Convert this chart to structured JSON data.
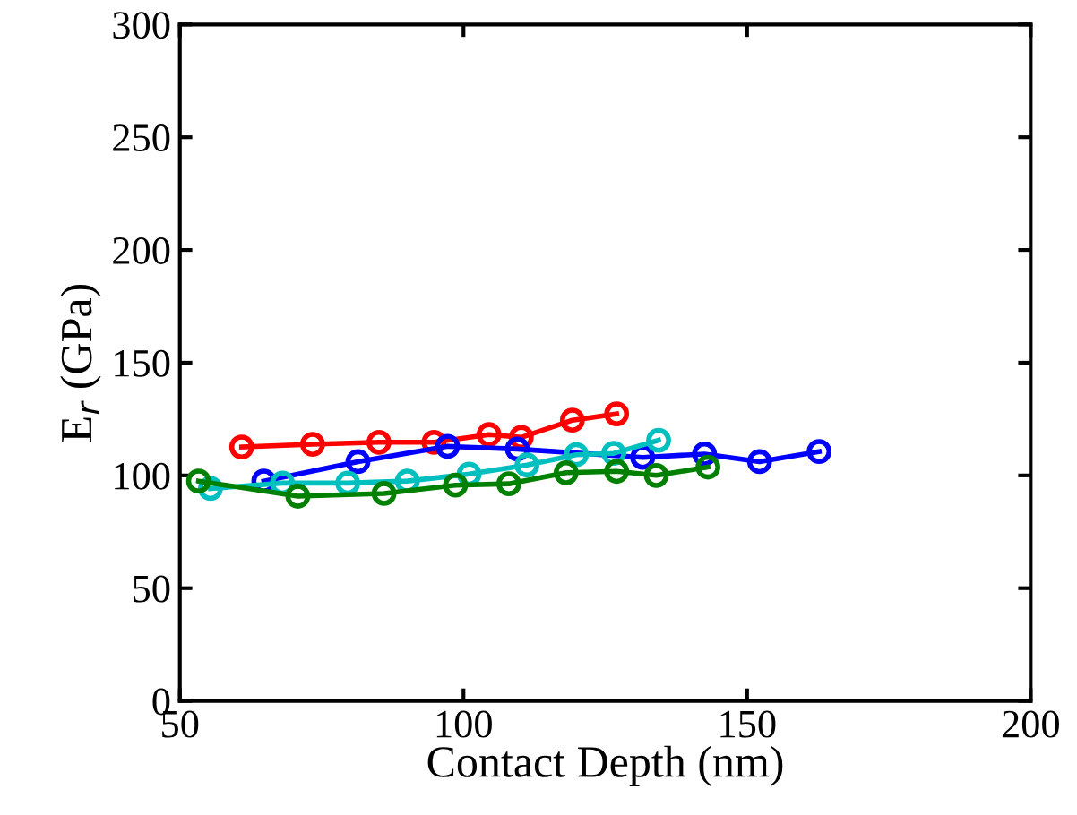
{
  "chart_data": {
    "type": "line",
    "xlabel": "Contact Depth (nm)",
    "ylabel": "E$_{r}$ (GPa)",
    "xlim": [
      50,
      200
    ],
    "ylim": [
      0,
      300
    ],
    "xticks": [
      50,
      100,
      150,
      200
    ],
    "yticks": [
      0,
      50,
      100,
      150,
      200,
      250,
      300
    ],
    "grid": false,
    "legend": false,
    "marker": "circle",
    "line_style": "solid",
    "series": [
      {
        "color": "#ff0000",
        "x": [
          60.9,
          73.4,
          85.1,
          94.8,
          104.5,
          110.2,
          119.2,
          127.0
        ],
        "values": [
          112.6,
          113.8,
          114.7,
          114.7,
          118.1,
          116.9,
          124.5,
          127.3
        ]
      },
      {
        "color": "#0000ff",
        "x": [
          64.8,
          81.4,
          97.2,
          109.5,
          131.6,
          142.5,
          152.2,
          162.7
        ],
        "values": [
          97.5,
          106.1,
          112.9,
          111.7,
          108,
          109.5,
          106.1,
          110.6
        ]
      },
      {
        "color": "#00bfbf",
        "x": [
          55.4,
          68.1,
          79.6,
          90.1,
          101,
          111.2,
          119.9,
          126.5,
          134.4
        ],
        "values": [
          94.2,
          96.6,
          96.6,
          97.5,
          100.6,
          104.6,
          109.2,
          109.8,
          115.6
        ]
      },
      {
        "color": "#008000",
        "x": [
          53.3,
          70.8,
          86,
          98.6,
          108,
          118.1,
          127,
          134,
          143.1
        ],
        "values": [
          97.5,
          90.8,
          92,
          95.7,
          96.3,
          101.2,
          101.8,
          100,
          103.7
        ]
      }
    ]
  }
}
